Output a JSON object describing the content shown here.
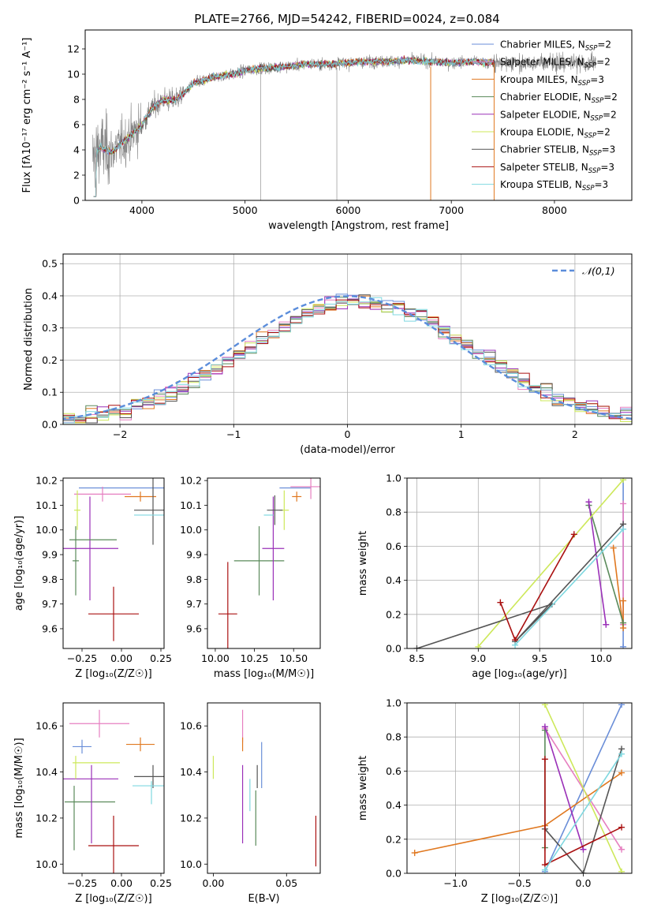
{
  "title": "PLATE=2766, MJD=54242, FIBERID=0024, z=0.084",
  "colors": {
    "chabrier_miles": "#6a8ed8",
    "salpeter_miles": "#e67fc0",
    "kroupa_miles": "#e07820",
    "chabrier_elodie": "#5a8a5a",
    "salpeter_elodie": "#9a30b8",
    "kroupa_elodie": "#cde85a",
    "chabrier_stelib": "#555555",
    "salpeter_stelib": "#aa1111",
    "kroupa_stelib": "#7fd8e0",
    "observed": "#808080",
    "normal_curve": "#5b8ddb",
    "grid": "#b0b0b0"
  },
  "legend": [
    {
      "key": "chabrier_miles",
      "label": "Chabrier MILES, N",
      "sub": "SSP",
      "tail": "=2"
    },
    {
      "key": "salpeter_miles",
      "label": "Salpeter MILES, N",
      "sub": "SSP",
      "tail": "=2"
    },
    {
      "key": "kroupa_miles",
      "label": "Kroupa MILES, N",
      "sub": "SSP",
      "tail": "=3"
    },
    {
      "key": "chabrier_elodie",
      "label": "Chabrier ELODIE, N",
      "sub": "SSP",
      "tail": "=2"
    },
    {
      "key": "salpeter_elodie",
      "label": "Salpeter ELODIE, N",
      "sub": "SSP",
      "tail": "=2"
    },
    {
      "key": "kroupa_elodie",
      "label": "Kroupa ELODIE, N",
      "sub": "SSP",
      "tail": "=2"
    },
    {
      "key": "chabrier_stelib",
      "label": "Chabrier STELIB, N",
      "sub": "SSP",
      "tail": "=3"
    },
    {
      "key": "salpeter_stelib",
      "label": "Salpeter STELIB, N",
      "sub": "SSP",
      "tail": "=3"
    },
    {
      "key": "kroupa_stelib",
      "label": "Kroupa STELIB, N",
      "sub": "SSP",
      "tail": "=3"
    }
  ],
  "chart_data": [
    {
      "type": "line",
      "panel": "spectrum",
      "xlabel": "wavelength [Angstrom, rest frame]",
      "ylabel": "Flux [fλ10⁻¹⁷ erg cm⁻² s⁻¹ A⁻¹]",
      "xlim": [
        3450,
        8750
      ],
      "ylim": [
        0,
        13.5
      ],
      "xticks": [
        4000,
        5000,
        6000,
        7000,
        8000
      ],
      "yticks": [
        0,
        2,
        4,
        6,
        8,
        10,
        12
      ],
      "continuum": {
        "x": [
          3500,
          3600,
          3700,
          3800,
          3900,
          4000,
          4100,
          4200,
          4300,
          4400,
          4500,
          4600,
          4700,
          4800,
          4900,
          5000,
          5200,
          5400,
          5600,
          5800,
          6000,
          6200,
          6400,
          6600,
          6800,
          7000,
          7200,
          7400
        ],
        "y": [
          3.2,
          4.2,
          3.8,
          4.5,
          5.2,
          6.0,
          7.3,
          8.0,
          7.9,
          8.4,
          9.3,
          9.5,
          9.8,
          9.9,
          10.0,
          10.3,
          10.5,
          10.6,
          10.8,
          10.8,
          10.9,
          11.0,
          11.0,
          11.1,
          11.0,
          10.9,
          11.0,
          10.9
        ]
      },
      "grid": false,
      "legend_position": "upper right"
    },
    {
      "type": "step",
      "panel": "residuals",
      "xlabel": "(data-model)/error",
      "ylabel": "Normed distribution",
      "xlim": [
        -2.5,
        2.5
      ],
      "ylim": [
        0,
        0.53
      ],
      "xticks": [
        -2,
        -1,
        0,
        1,
        2
      ],
      "yticks": [
        0.0,
        0.1,
        0.2,
        0.3,
        0.4,
        0.5
      ],
      "reference_label": "𝒩(0,1)",
      "grid": true,
      "legend_position": "upper right"
    },
    {
      "type": "errorbar",
      "panel": "age_vs_Z",
      "xlabel": "Z [log₁₀(Z/Z☉)]",
      "ylabel": "age  [log₁₀(age/yr)]",
      "xlim": [
        -0.37,
        0.27
      ],
      "ylim": [
        9.52,
        10.21
      ],
      "xticks": [
        -0.25,
        0.0,
        0.25
      ],
      "yticks": [
        9.6,
        9.7,
        9.8,
        9.9,
        10.0,
        10.1,
        10.2
      ],
      "points": [
        {
          "key": "chabrier_miles",
          "x": 0.01,
          "xerr": 0.28,
          "y": 10.17,
          "yerr": 0.0
        },
        {
          "key": "salpeter_miles",
          "x": -0.12,
          "xerr": 0.18,
          "y": 10.145,
          "yerr": 0.03
        },
        {
          "key": "kroupa_miles",
          "x": 0.12,
          "xerr": 0.1,
          "y": 10.135,
          "yerr": 0.02
        },
        {
          "key": "chabrier_elodie",
          "x": -0.29,
          "xerr": 0.02,
          "y": 9.875,
          "yerr": 0.14
        },
        {
          "key": "salpeter_elodie",
          "x": -0.2,
          "xerr": 0.18,
          "y": 9.925,
          "yerr": 0.21
        },
        {
          "key": "kroupa_elodie",
          "x": -0.28,
          "xerr": 0.02,
          "y": 10.08,
          "yerr": 0.08
        },
        {
          "key": "chabrier_stelib",
          "x": 0.2,
          "xerr": 0.12,
          "y": 10.08,
          "yerr": 0.14
        },
        {
          "key": "salpeter_stelib",
          "x": -0.05,
          "xerr": 0.16,
          "y": 9.66,
          "yerr": 0.11
        },
        {
          "key": "kroupa_stelib",
          "x": 0.21,
          "xerr": 0.13,
          "y": 10.06,
          "yerr": 0.0
        },
        {
          "key": "chabrier_elodie",
          "x": -0.18,
          "xerr": 0.15,
          "y": 9.96,
          "yerr": 0.0
        }
      ]
    },
    {
      "type": "errorbar",
      "panel": "age_vs_mass",
      "xlabel": "mass [log₁₀(M/M☉)]",
      "ylabel": "",
      "xlim": [
        9.95,
        10.67
      ],
      "ylim": [
        9.52,
        10.21
      ],
      "xticks": [
        10.0,
        10.25,
        10.5
      ],
      "yticks": [
        9.6,
        9.7,
        9.8,
        9.9,
        10.0,
        10.1,
        10.2
      ],
      "points": [
        {
          "key": "chabrier_miles",
          "x": 10.51,
          "xerr": 0.1,
          "y": 10.17,
          "yerr": 0.0
        },
        {
          "key": "salpeter_miles",
          "x": 10.61,
          "xerr": 0.13,
          "y": 10.175,
          "yerr": 0.05
        },
        {
          "key": "kroupa_miles",
          "x": 10.52,
          "xerr": 0.03,
          "y": 10.135,
          "yerr": 0.02
        },
        {
          "key": "chabrier_elodie",
          "x": 10.28,
          "xerr": 0.16,
          "y": 9.875,
          "yerr": 0.14
        },
        {
          "key": "salpeter_elodie",
          "x": 10.37,
          "xerr": 0.07,
          "y": 9.925,
          "yerr": 0.21
        },
        {
          "key": "kroupa_elodie",
          "x": 10.44,
          "xerr": 0.03,
          "y": 10.08,
          "yerr": 0.08
        },
        {
          "key": "chabrier_stelib",
          "x": 10.38,
          "xerr": 0.05,
          "y": 10.08,
          "yerr": 0.06
        },
        {
          "key": "salpeter_stelib",
          "x": 10.08,
          "xerr": 0.06,
          "y": 9.66,
          "yerr": 0.21
        },
        {
          "key": "kroupa_stelib",
          "x": 10.34,
          "xerr": 0.03,
          "y": 10.06,
          "yerr": 0.0
        }
      ]
    },
    {
      "type": "line",
      "panel": "weight_vs_age",
      "xlabel": "age  [log₁₀(age/yr)]",
      "ylabel": "mass weight",
      "xlim": [
        8.42,
        10.25
      ],
      "ylim": [
        0,
        1
      ],
      "xticks": [
        8.5,
        9.0,
        9.5,
        10.0
      ],
      "yticks": [
        0.0,
        0.2,
        0.4,
        0.6,
        0.8,
        1.0
      ],
      "grid": true,
      "series": [
        {
          "key": "chabrier_miles",
          "x": [
            10.18,
            10.18
          ],
          "y": [
            0.99,
            0.01
          ]
        },
        {
          "key": "salpeter_miles",
          "x": [
            10.18,
            10.18
          ],
          "y": [
            0.85,
            0.14
          ]
        },
        {
          "key": "kroupa_miles",
          "x": [
            10.1,
            10.18,
            10.18
          ],
          "y": [
            0.59,
            0.12,
            0.28
          ]
        },
        {
          "key": "chabrier_elodie",
          "x": [
            9.9,
            10.18
          ],
          "y": [
            0.84,
            0.15
          ]
        },
        {
          "key": "salpeter_elodie",
          "x": [
            9.9,
            10.04
          ],
          "y": [
            0.86,
            0.14
          ]
        },
        {
          "key": "kroupa_elodie",
          "x": [
            9.0,
            10.18
          ],
          "y": [
            0.01,
            0.99
          ]
        },
        {
          "key": "chabrier_stelib",
          "x": [
            8.5,
            9.6,
            9.3,
            10.18
          ],
          "y": [
            0.0,
            0.26,
            0.04,
            0.73
          ]
        },
        {
          "key": "salpeter_stelib",
          "x": [
            9.18,
            9.3,
            9.78
          ],
          "y": [
            0.27,
            0.05,
            0.67
          ]
        },
        {
          "key": "kroupa_stelib",
          "x": [
            9.3,
            10.18
          ],
          "y": [
            0.02,
            0.7
          ]
        }
      ]
    },
    {
      "type": "errorbar",
      "panel": "mass_vs_Z",
      "xlabel": "Z [log₁₀(Z/Z☉)]",
      "ylabel": "mass [log₁₀(M/M☉)]",
      "xlim": [
        -0.37,
        0.27
      ],
      "ylim": [
        9.96,
        10.7
      ],
      "xticks": [
        -0.25,
        0.0,
        0.25
      ],
      "yticks": [
        10.0,
        10.2,
        10.4,
        10.6
      ],
      "points": [
        {
          "key": "chabrier_miles",
          "x": -0.25,
          "xerr": 0.06,
          "y": 10.51,
          "yerr": 0.03
        },
        {
          "key": "salpeter_miles",
          "x": -0.14,
          "xerr": 0.19,
          "y": 10.61,
          "yerr": 0.06
        },
        {
          "key": "kroupa_miles",
          "x": 0.12,
          "xerr": 0.09,
          "y": 10.52,
          "yerr": 0.03
        },
        {
          "key": "chabrier_elodie",
          "x": -0.2,
          "xerr": 0.16,
          "y": 10.27,
          "yerr": 0.0
        },
        {
          "key": "chabrier_elodie",
          "x": -0.3,
          "xerr": 0.0,
          "y": 10.2,
          "yerr": 0.14
        },
        {
          "key": "salpeter_elodie",
          "x": -0.2,
          "xerr": 0.18,
          "y": 10.37,
          "yerr": 0.0
        },
        {
          "key": "salpeter_elodie",
          "x": -0.19,
          "xerr": 0.0,
          "y": 10.26,
          "yerr": 0.17
        },
        {
          "key": "kroupa_elodie",
          "x": -0.16,
          "xerr": 0.15,
          "y": 10.44,
          "yerr": 0.0
        },
        {
          "key": "kroupa_elodie",
          "x": -0.29,
          "xerr": 0.0,
          "y": 10.42,
          "yerr": 0.05
        },
        {
          "key": "chabrier_stelib",
          "x": 0.2,
          "xerr": 0.12,
          "y": 10.38,
          "yerr": 0.05
        },
        {
          "key": "salpeter_stelib",
          "x": -0.05,
          "xerr": 0.16,
          "y": 10.08,
          "yerr": 0.13
        },
        {
          "key": "kroupa_stelib",
          "x": 0.17,
          "xerr": 0.1,
          "y": 10.34,
          "yerr": 0.0
        },
        {
          "key": "kroupa_stelib",
          "x": 0.19,
          "xerr": 0.0,
          "y": 10.31,
          "yerr": 0.05
        }
      ]
    },
    {
      "type": "errorbar",
      "panel": "mass_vs_EBV",
      "xlabel": "E(B-V)",
      "ylabel": "",
      "xlim": [
        -0.004,
        0.073
      ],
      "ylim": [
        9.96,
        10.7
      ],
      "xticks": [
        0.0,
        0.05
      ],
      "yticks": [
        10.0,
        10.2,
        10.4,
        10.6
      ],
      "points": [
        {
          "key": "chabrier_miles",
          "x": 0.033,
          "y": 10.43,
          "yerr": 0.1
        },
        {
          "key": "salpeter_miles",
          "x": 0.02,
          "y": 10.6,
          "yerr": 0.07
        },
        {
          "key": "kroupa_miles",
          "x": 0.02,
          "y": 10.52,
          "yerr": 0.03
        },
        {
          "key": "chabrier_elodie",
          "x": 0.029,
          "y": 10.2,
          "yerr": 0.12
        },
        {
          "key": "salpeter_elodie",
          "x": 0.02,
          "y": 10.26,
          "yerr": 0.17
        },
        {
          "key": "kroupa_elodie",
          "x": 0.0,
          "y": 10.42,
          "yerr": 0.05
        },
        {
          "key": "chabrier_stelib",
          "x": 0.03,
          "y": 10.38,
          "yerr": 0.05
        },
        {
          "key": "salpeter_stelib",
          "x": 0.07,
          "y": 10.1,
          "yerr": 0.11
        },
        {
          "key": "kroupa_stelib",
          "x": 0.025,
          "y": 10.3,
          "yerr": 0.07
        }
      ]
    },
    {
      "type": "line",
      "panel": "weight_vs_Z",
      "xlabel": "Z [log₁₀(Z/Z☉)]",
      "ylabel": "mass weight",
      "xlim": [
        -1.38,
        0.38
      ],
      "ylim": [
        0,
        1
      ],
      "xticks": [
        -1.0,
        -0.5,
        0.0
      ],
      "yticks": [
        0.0,
        0.2,
        0.4,
        0.6,
        0.8,
        1.0
      ],
      "grid": true,
      "series": [
        {
          "key": "chabrier_miles",
          "x": [
            -0.3,
            0.3
          ],
          "y": [
            0.01,
            0.99
          ]
        },
        {
          "key": "salpeter_miles",
          "x": [
            -0.3,
            0.3
          ],
          "y": [
            0.85,
            0.14
          ]
        },
        {
          "key": "kroupa_miles",
          "x": [
            -1.32,
            -0.3,
            0.3
          ],
          "y": [
            0.12,
            0.28,
            0.59
          ]
        },
        {
          "key": "chabrier_elodie",
          "x": [
            -0.3,
            -0.3
          ],
          "y": [
            0.84,
            0.15
          ]
        },
        {
          "key": "salpeter_elodie",
          "x": [
            -0.3,
            0.0
          ],
          "y": [
            0.86,
            0.14
          ]
        },
        {
          "key": "kroupa_elodie",
          "x": [
            -0.3,
            0.3
          ],
          "y": [
            0.99,
            0.01
          ]
        },
        {
          "key": "chabrier_stelib",
          "x": [
            -0.3,
            0.0,
            0.3
          ],
          "y": [
            0.26,
            0.0,
            0.73
          ]
        },
        {
          "key": "salpeter_stelib",
          "x": [
            -0.3,
            -0.3,
            0.3
          ],
          "y": [
            0.67,
            0.05,
            0.27
          ]
        },
        {
          "key": "kroupa_stelib",
          "x": [
            -0.3,
            0.3
          ],
          "y": [
            0.02,
            0.7
          ]
        }
      ]
    }
  ]
}
